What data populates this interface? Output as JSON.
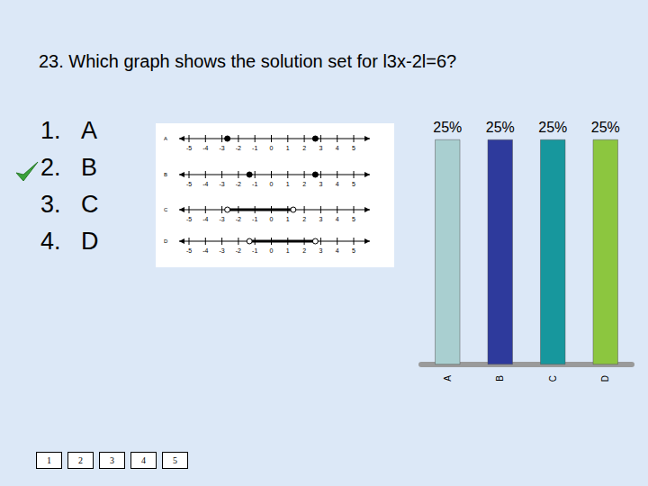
{
  "title": "23.  Which graph shows the solution set for l3x-2l=6?",
  "options": [
    {
      "number": "1.",
      "text": "A"
    },
    {
      "number": "2.",
      "text": "B"
    },
    {
      "number": "3.",
      "text": "C"
    },
    {
      "number": "4.",
      "text": "D"
    }
  ],
  "correct": 2,
  "number_lines": {
    "ticks": [
      -5,
      -4,
      -3,
      -2,
      -1,
      0,
      1,
      2,
      3,
      4,
      5
    ],
    "lines": [
      {
        "label": "A",
        "points": [
          -2.67,
          2.67
        ],
        "marker": "closed"
      },
      {
        "label": "B",
        "points": [
          -1.33,
          2.67
        ],
        "marker": "closed"
      },
      {
        "label": "C",
        "segment": [
          -2.67,
          1.33
        ],
        "marker": "open"
      },
      {
        "label": "D",
        "segment": [
          -1.33,
          2.67
        ],
        "marker": "open"
      }
    ]
  },
  "counter": [
    "1",
    "2",
    "3",
    "4",
    "5"
  ],
  "chart_data": {
    "type": "bar",
    "categories": [
      "A",
      "B",
      "C",
      "D"
    ],
    "values": [
      25,
      25,
      25,
      25
    ],
    "value_labels": [
      "25%",
      "25%",
      "25%",
      "25%"
    ],
    "data_labels": true,
    "colors": [
      "#a9cfd0",
      "#2e3a9c",
      "#17979d",
      "#8cc63f"
    ],
    "ylim": [
      0,
      25
    ],
    "yticks": [
      0,
      25
    ],
    "grid": false,
    "tick_labels": "x"
  }
}
